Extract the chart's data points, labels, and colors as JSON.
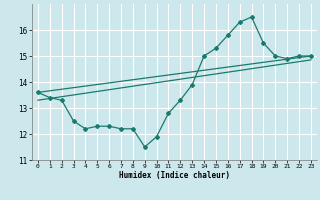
{
  "xlabel": "Humidex (Indice chaleur)",
  "bg_color": "#cce8ec",
  "grid_color": "#ffffff",
  "line_color": "#1a7a6e",
  "xlim": [
    -0.5,
    23.5
  ],
  "ylim": [
    11,
    17
  ],
  "yticks": [
    11,
    12,
    13,
    14,
    15,
    16
  ],
  "xticks": [
    0,
    1,
    2,
    3,
    4,
    5,
    6,
    7,
    8,
    9,
    10,
    11,
    12,
    13,
    14,
    15,
    16,
    17,
    18,
    19,
    20,
    21,
    22,
    23
  ],
  "line1_x": [
    0,
    1,
    2,
    3,
    4,
    5,
    6,
    7,
    8,
    9,
    10,
    11,
    12,
    13,
    14,
    15,
    16,
    17,
    18,
    19,
    20,
    21,
    22,
    23
  ],
  "line1_y": [
    13.6,
    13.4,
    13.3,
    12.5,
    12.2,
    12.3,
    12.3,
    12.2,
    12.2,
    11.5,
    11.9,
    12.8,
    13.3,
    13.9,
    15.0,
    15.3,
    15.8,
    16.3,
    16.5,
    15.5,
    15.0,
    14.9,
    15.0,
    15.0
  ],
  "line2_x": [
    0,
    23
  ],
  "line2_y": [
    13.6,
    15.0
  ],
  "line3_x": [
    0,
    23
  ],
  "line3_y": [
    13.3,
    14.85
  ]
}
